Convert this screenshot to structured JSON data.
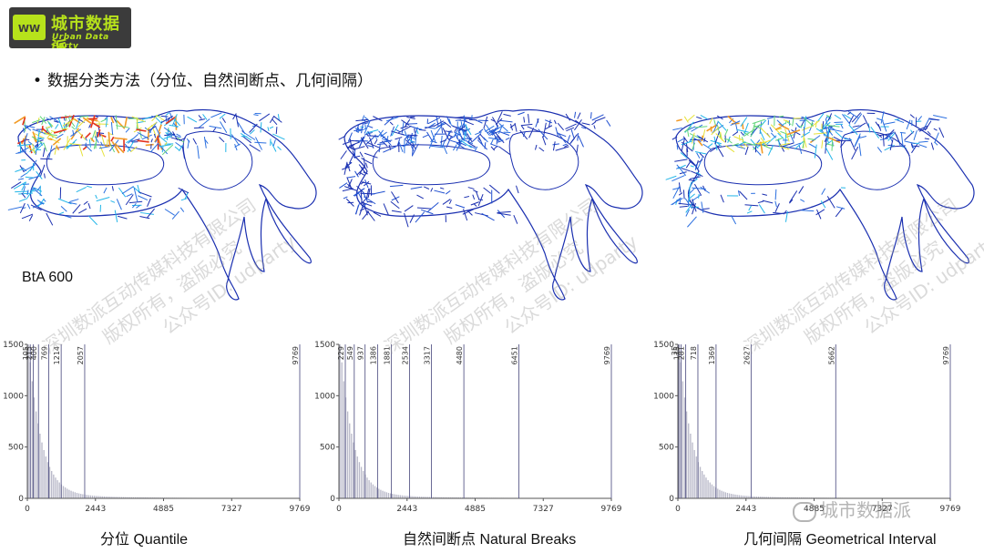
{
  "logo": {
    "title": "城市数据派",
    "subtitle": "Urban Data Party"
  },
  "bullet": "数据分类方法（分位、自然间断点、几何间隔）",
  "map_label": "BtA 600",
  "watermarks": {
    "line1": "深圳数派互动传媒科技有限公司",
    "line2": "版权所有，盗版必究",
    "line3": "公众号ID: udparty"
  },
  "wechat": "城市数据派",
  "chart_data": [
    {
      "type": "bar",
      "title": "分位 Quantile",
      "x_ticks": [
        "0",
        "2443",
        "4885",
        "7327",
        "9769"
      ],
      "y_ticks": [
        "0",
        "500",
        "1000",
        "1500"
      ],
      "xlim": [
        0,
        9769
      ],
      "ylim": [
        0,
        1500
      ],
      "breaks": [
        105,
        215,
        400,
        769,
        1214,
        2057,
        9769
      ],
      "break_labels": [
        "105",
        "215",
        "400",
        "769",
        "1214",
        "2057",
        "9769"
      ]
    },
    {
      "type": "bar",
      "title": "自然间断点 Natural Breaks",
      "x_ticks": [
        "0",
        "2443",
        "4885",
        "7327",
        "9769"
      ],
      "y_ticks": [
        "0",
        "500",
        "1000",
        "1500"
      ],
      "xlim": [
        0,
        9769
      ],
      "ylim": [
        0,
        1500
      ],
      "breaks": [
        229,
        549,
        937,
        1386,
        1881,
        2534,
        3317,
        4480,
        6451,
        9769
      ],
      "break_labels": [
        "229",
        "549",
        "937",
        "1386",
        "1881",
        "2534",
        "3317",
        "4480",
        "6451",
        "9769"
      ]
    },
    {
      "type": "bar",
      "title": "几何间隔 Geometrical Interval",
      "x_ticks": [
        "0",
        "2443",
        "4885",
        "7327",
        "9769"
      ],
      "y_ticks": [
        "0",
        "500",
        "1000",
        "1500"
      ],
      "xlim": [
        0,
        9769
      ],
      "ylim": [
        0,
        1500
      ],
      "breaks": [
        35,
        115,
        281,
        718,
        1369,
        2627,
        5662,
        9769
      ],
      "break_labels": [
        "35",
        "115",
        "281",
        "718",
        "1369",
        "2627",
        "5662",
        "9769"
      ]
    }
  ]
}
